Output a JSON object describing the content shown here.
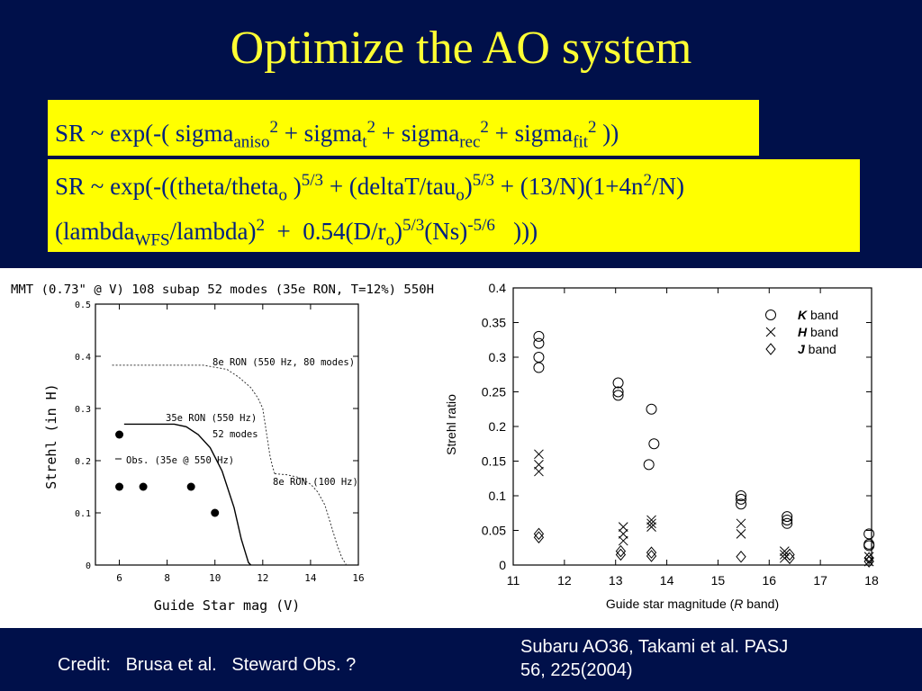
{
  "title": "Optimize the AO system",
  "formula1": {
    "p1": "SR ~ exp(-( sigma",
    "s1": "aniso",
    "x1": "2",
    "p2": " + sigma",
    "s2": "t",
    "x2": "2",
    "p3": " + sigma",
    "s3": "rec",
    "x3": "2",
    "p4": " + sigma",
    "s4": "fit",
    "x4": "2",
    "p5": " ))"
  },
  "formula2": {
    "a1": "SR ~ exp(-((theta/theta",
    "a1s": "o",
    "a2": " )",
    "a2x": "5/3",
    "a3": " + (deltaT/tau",
    "a3s": "o",
    "a4": ")",
    "a4x": "5/3",
    "a5": " + (13/N)(1+4n",
    "a5x": "2",
    "a6": "/N)",
    "b1": "(lambda",
    "b1s": "WFS",
    "b2": "/lambda)",
    "b2x": "2",
    "b3": "  +  0.54(D/r",
    "b3s": "o",
    "b4": ")",
    "b4x": "5/3",
    "b5": "(Ns)",
    "b5x": "-5/6",
    "b6": "   )))"
  },
  "chart_data": [
    {
      "type": "line",
      "title": "MMT (0.73\" @ V) 108 subap 52 modes (35e RON, T=12%) 550H",
      "xlabel": "Guide Star mag (V)",
      "ylabel": "Strehl (in H)",
      "xlim": [
        5,
        16
      ],
      "ylim": [
        0,
        0.5
      ],
      "xticks": [
        6,
        8,
        10,
        12,
        14,
        16
      ],
      "yticks": [
        0,
        0.1,
        0.2,
        0.3,
        0.4,
        0.5
      ],
      "series": [
        {
          "name": "8e RON (550 Hz, 80 modes)",
          "x": [
            5.7,
            9.5,
            10.5,
            11.0,
            11.5,
            11.8,
            12.0,
            12.1,
            12.2,
            12.3,
            12.4,
            12.5
          ],
          "y": [
            0.383,
            0.383,
            0.375,
            0.36,
            0.34,
            0.32,
            0.3,
            0.27,
            0.24,
            0.21,
            0.19,
            0.175
          ]
        },
        {
          "name": "35e RON (550 Hz) 52 modes",
          "x": [
            6.2,
            8.3,
            8.8,
            9.3,
            9.8,
            10.3,
            10.8,
            11.1,
            11.3,
            11.4,
            11.5
          ],
          "y": [
            0.27,
            0.27,
            0.265,
            0.25,
            0.225,
            0.18,
            0.11,
            0.05,
            0.02,
            0.005,
            0.0
          ]
        },
        {
          "name": "8e RON (100 Hz)",
          "x": [
            12.5,
            13.0,
            13.5,
            14.0,
            14.3,
            14.6,
            14.9,
            15.1,
            15.3,
            15.5
          ],
          "y": [
            0.175,
            0.173,
            0.168,
            0.155,
            0.14,
            0.115,
            0.07,
            0.04,
            0.015,
            0.0
          ]
        },
        {
          "name": "Obs. (35e @ 550 Hz)",
          "mode": "markers",
          "x": [
            6,
            6,
            7,
            9,
            10
          ],
          "y": [
            0.25,
            0.15,
            0.15,
            0.15,
            0.1
          ]
        }
      ],
      "annotations": [
        "8e RON (550 Hz, 80 modes)",
        "35e RON (550 Hz)",
        "52 modes",
        "Obs. (35e @ 550 Hz)",
        "8e RON (100 Hz)"
      ]
    },
    {
      "type": "scatter",
      "xlabel": "Guide star magnitude (R band)",
      "ylabel": "Strehl ratio",
      "xlim": [
        11,
        18
      ],
      "ylim": [
        0,
        0.4
      ],
      "xticks": [
        11,
        12,
        13,
        14,
        15,
        16,
        17,
        18
      ],
      "yticks": [
        0,
        0.05,
        0.1,
        0.15,
        0.2,
        0.25,
        0.3,
        0.35,
        0.4
      ],
      "grid": false,
      "legend": "top-right",
      "series": [
        {
          "name": "K band",
          "marker": "circle",
          "x": [
            11.5,
            11.5,
            11.5,
            11.5,
            13.05,
            13.05,
            13.05,
            13.7,
            13.75,
            13.65,
            15.45,
            15.45,
            15.45,
            16.35,
            16.35,
            16.35,
            17.95,
            17.95,
            17.95
          ],
          "y": [
            0.33,
            0.32,
            0.3,
            0.285,
            0.263,
            0.25,
            0.245,
            0.225,
            0.175,
            0.145,
            0.1,
            0.095,
            0.088,
            0.07,
            0.065,
            0.06,
            0.045,
            0.03,
            0.028
          ]
        },
        {
          "name": "H band",
          "marker": "x",
          "x": [
            11.5,
            11.5,
            11.5,
            13.15,
            13.15,
            13.15,
            13.7,
            13.7,
            13.7,
            15.45,
            15.45,
            16.3,
            16.3,
            16.3,
            17.95,
            17.95
          ],
          "y": [
            0.16,
            0.145,
            0.135,
            0.055,
            0.045,
            0.035,
            0.065,
            0.06,
            0.055,
            0.06,
            0.045,
            0.02,
            0.015,
            0.01,
            0.012,
            0.005
          ]
        },
        {
          "name": "J band",
          "marker": "diamond",
          "x": [
            11.5,
            11.5,
            13.1,
            13.1,
            13.7,
            13.7,
            15.45,
            16.4,
            16.4,
            17.95,
            17.95
          ],
          "y": [
            0.045,
            0.04,
            0.02,
            0.015,
            0.018,
            0.013,
            0.012,
            0.015,
            0.01,
            0.01,
            0.005
          ]
        }
      ],
      "legend_entries": [
        {
          "italic": "K",
          "text": " band"
        },
        {
          "italic": "H",
          "text": " band"
        },
        {
          "italic": "J",
          "text": " band"
        }
      ],
      "xlabel_parts": {
        "pre": "Guide star magnitude (",
        "italic": "R",
        "post": " band)"
      }
    }
  ],
  "footer": {
    "credit": "Credit:   Brusa et al.   Steward Obs. ?",
    "ref_line1": "Subaru  AO36, Takami et al. PASJ",
    "ref_line2": "56, 225(2004)"
  }
}
